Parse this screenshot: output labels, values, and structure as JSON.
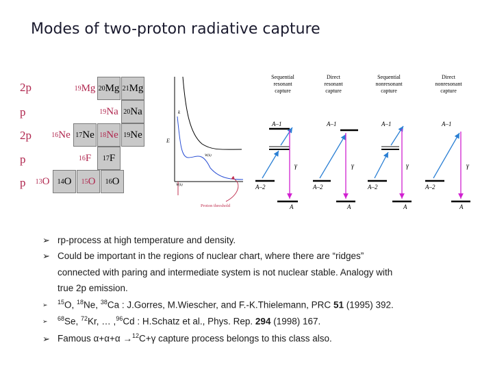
{
  "title": "Modes of two-proton radiative capture",
  "nuclear_chart": {
    "row_labels": [
      "2p",
      "p",
      "2p",
      "p",
      "p"
    ],
    "cells": [
      {
        "a": "19",
        "el": "Mg",
        "style": "white-red"
      },
      {
        "a": "20",
        "el": "Mg",
        "style": "gray"
      },
      {
        "a": "21",
        "el": "Mg",
        "style": "gray"
      },
      {
        "a": "19",
        "el": "Na",
        "style": "white-red"
      },
      {
        "a": "20",
        "el": "Na",
        "style": "gray"
      },
      {
        "a": "16",
        "el": "Ne",
        "style": "white-red"
      },
      {
        "a": "17",
        "el": "Ne",
        "style": "gray"
      },
      {
        "a": "18",
        "el": "Ne",
        "style": "gray-red"
      },
      {
        "a": "19",
        "el": "Ne",
        "style": "gray"
      },
      {
        "a": "16",
        "el": "F",
        "style": "white-red"
      },
      {
        "a": "17",
        "el": "F",
        "style": "gray"
      },
      {
        "a": "13",
        "el": "O",
        "style": "white-red"
      },
      {
        "a": "14",
        "el": "O",
        "style": "gray"
      },
      {
        "a": "15",
        "el": "O",
        "style": "gray-red"
      },
      {
        "a": "16",
        "el": "O",
        "style": "gray"
      }
    ]
  },
  "diagram": {
    "axis_e": "E",
    "axis_k": "k",
    "curve_label_1": "W(k)",
    "curve_label_2": "W(k)",
    "proton_threshold": "Proton threshold",
    "columns": [
      {
        "header": [
          "Sequential",
          "resonant",
          "capture"
        ],
        "upper": "A–1",
        "lower": "A–2",
        "final": "A",
        "gamma": "γ"
      },
      {
        "header": [
          "Direct",
          "resonant",
          "capture"
        ],
        "upper": "A–1",
        "lower": "A–2",
        "final": "A",
        "gamma": "γ"
      },
      {
        "header": [
          "Sequential",
          "nonresonant",
          "capture"
        ],
        "upper": "A–1",
        "lower": "A–2",
        "final": "A",
        "gamma": "γ"
      },
      {
        "header": [
          "Direct",
          "nonresonant",
          "capture"
        ],
        "upper": "A–1",
        "lower": "A–2",
        "final": "A",
        "gamma": "γ"
      }
    ]
  },
  "bullets": {
    "b1": "rp-process at high temperature and density.",
    "b2_line1": "Could be important in the regions of nuclear chart, where there are “ridges”",
    "b2_line2": "connected with paring and intermediate system is not nuclear stable. Analogy with",
    "b2_line3": "true 2p emission.",
    "b3_m1": "15",
    "b3_e1": "O, ",
    "b3_m2": "18",
    "b3_e2": "Ne, ",
    "b3_m3": "38",
    "b3_e3": "Ca : J.Gorres, M.Wiescher, and F.-K.Thielemann, PRC ",
    "b3_vol": "51",
    "b3_end": " (1995) 392.",
    "b4_m1": "68",
    "b4_e1": "Se, ",
    "b4_m2": "72",
    "b4_e2": "Kr, … ,",
    "b4_m3": "96",
    "b4_e3": "Cd : H.Schatz et al., Phys. Rep. ",
    "b4_vol": "294",
    "b4_end": " (1998) 167.",
    "b5_pre": "Famous  α+α+α →",
    "b5_sup": "12",
    "b5_post": "C+γ  capture process belongs to this class also."
  }
}
